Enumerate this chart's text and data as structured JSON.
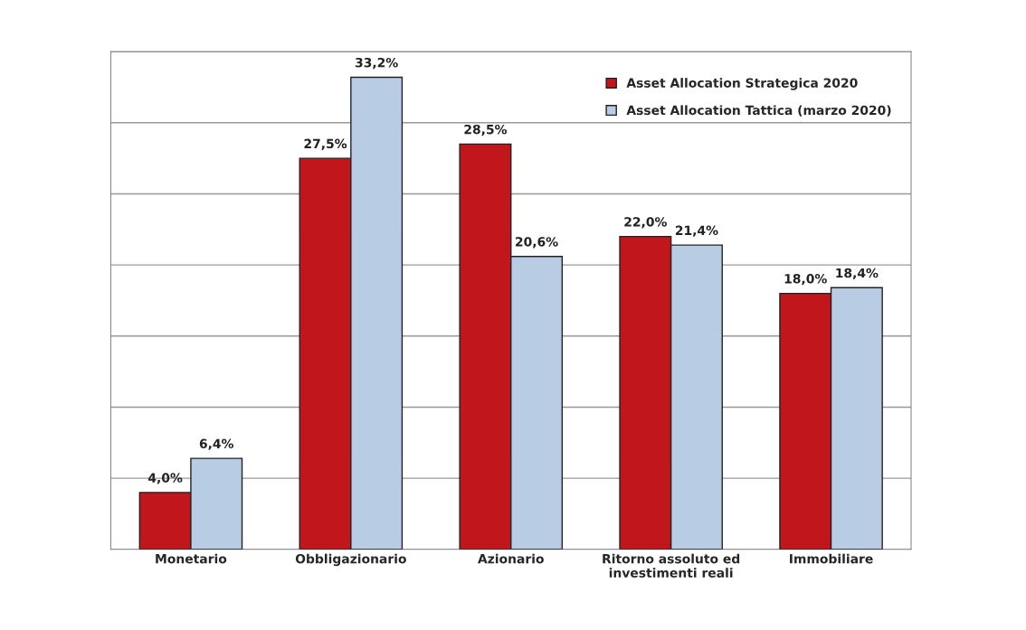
{
  "chart_data": {
    "type": "bar",
    "categories": [
      "Monetario",
      "Obbligazionario",
      "Azionario",
      "Ritorno assoluto ed\ninvestimenti reali",
      "Immobiliare"
    ],
    "series": [
      {
        "name": "Asset Allocation Strategica 2020",
        "color": "#c0161c",
        "values": [
          4.0,
          27.5,
          28.5,
          22.0,
          18.0
        ],
        "value_labels": [
          "4,0%",
          "27,5%",
          "28,5%",
          "22,0%",
          "18,0%"
        ]
      },
      {
        "name": "Asset Allocation Tattica (marzo 2020)",
        "color": "#b8cce4",
        "values": [
          6.4,
          33.2,
          20.6,
          21.4,
          18.4
        ],
        "value_labels": [
          "6,4%",
          "33,2%",
          "20,6%",
          "21,4%",
          "18,4%"
        ]
      }
    ],
    "ylim": [
      0,
      35
    ],
    "yticks": [
      {
        "value": 0,
        "label": null
      },
      {
        "value": 5,
        "label": null
      },
      {
        "value": 10,
        "label": null
      },
      {
        "value": 15,
        "label": null
      },
      {
        "value": 20,
        "label": null
      },
      {
        "value": 25,
        "label": null
      },
      {
        "value": 30,
        "label": null
      },
      {
        "value": 35,
        "label": null
      }
    ],
    "grid": "y",
    "legend": "top right",
    "tick_labels": "x"
  }
}
